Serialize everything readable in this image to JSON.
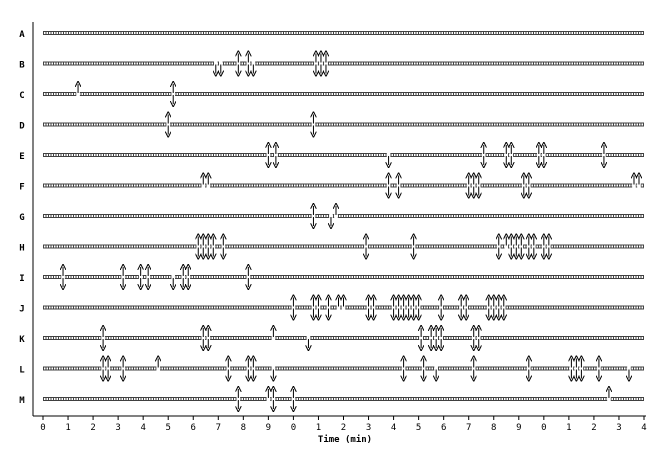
{
  "chart_data": {
    "type": "event-raster",
    "xlabel": "Time (min)",
    "x_tick_labels": [
      "0",
      "1",
      "2",
      "3",
      "4",
      "5",
      "6",
      "7",
      "8",
      "9",
      "0",
      "1",
      "2",
      "3",
      "4",
      "5",
      "6",
      "7",
      "8",
      "9",
      "0",
      "1",
      "2",
      "3",
      "4"
    ],
    "xlim": [
      0,
      24
    ],
    "grid": false,
    "legend": "none",
    "rows": [
      {
        "label": "A",
        "events": []
      },
      {
        "label": "B",
        "events": [
          {
            "t": 6.9,
            "dir": "down"
          },
          {
            "t": 7.1,
            "dir": "down"
          },
          {
            "t": 7.8,
            "dir": "both"
          },
          {
            "t": 8.2,
            "dir": "both"
          },
          {
            "t": 8.4,
            "dir": "down"
          },
          {
            "t": 10.9,
            "dir": "both"
          },
          {
            "t": 11.1,
            "dir": "both"
          },
          {
            "t": 11.3,
            "dir": "both"
          }
        ]
      },
      {
        "label": "C",
        "events": [
          {
            "t": 1.4,
            "dir": "up"
          },
          {
            "t": 5.2,
            "dir": "both"
          }
        ]
      },
      {
        "label": "D",
        "events": [
          {
            "t": 5.0,
            "dir": "both"
          },
          {
            "t": 10.8,
            "dir": "both"
          }
        ]
      },
      {
        "label": "E",
        "events": [
          {
            "t": 9.0,
            "dir": "both"
          },
          {
            "t": 9.3,
            "dir": "both"
          },
          {
            "t": 13.8,
            "dir": "down"
          },
          {
            "t": 17.6,
            "dir": "both"
          },
          {
            "t": 18.5,
            "dir": "both"
          },
          {
            "t": 18.7,
            "dir": "both"
          },
          {
            "t": 19.8,
            "dir": "both"
          },
          {
            "t": 20.0,
            "dir": "both"
          },
          {
            "t": 22.4,
            "dir": "both"
          }
        ]
      },
      {
        "label": "F",
        "events": [
          {
            "t": 6.4,
            "dir": "up"
          },
          {
            "t": 6.6,
            "dir": "up"
          },
          {
            "t": 13.8,
            "dir": "both"
          },
          {
            "t": 14.2,
            "dir": "both"
          },
          {
            "t": 17.0,
            "dir": "both"
          },
          {
            "t": 17.2,
            "dir": "both"
          },
          {
            "t": 17.4,
            "dir": "both"
          },
          {
            "t": 19.2,
            "dir": "both"
          },
          {
            "t": 19.4,
            "dir": "both"
          },
          {
            "t": 23.6,
            "dir": "up"
          },
          {
            "t": 23.8,
            "dir": "up"
          }
        ]
      },
      {
        "label": "G",
        "events": [
          {
            "t": 10.8,
            "dir": "both"
          },
          {
            "t": 11.5,
            "dir": "down"
          },
          {
            "t": 11.7,
            "dir": "up"
          }
        ]
      },
      {
        "label": "H",
        "events": [
          {
            "t": 6.2,
            "dir": "both"
          },
          {
            "t": 6.4,
            "dir": "both"
          },
          {
            "t": 6.6,
            "dir": "both"
          },
          {
            "t": 6.8,
            "dir": "both"
          },
          {
            "t": 7.2,
            "dir": "both"
          },
          {
            "t": 12.9,
            "dir": "both"
          },
          {
            "t": 14.8,
            "dir": "both"
          },
          {
            "t": 18.2,
            "dir": "both"
          },
          {
            "t": 18.5,
            "dir": "up"
          },
          {
            "t": 18.7,
            "dir": "both"
          },
          {
            "t": 18.9,
            "dir": "both"
          },
          {
            "t": 19.1,
            "dir": "both"
          },
          {
            "t": 19.4,
            "dir": "both"
          },
          {
            "t": 19.6,
            "dir": "both"
          },
          {
            "t": 20.0,
            "dir": "both"
          },
          {
            "t": 20.2,
            "dir": "both"
          }
        ]
      },
      {
        "label": "I",
        "events": [
          {
            "t": 0.8,
            "dir": "both"
          },
          {
            "t": 3.2,
            "dir": "both"
          },
          {
            "t": 3.9,
            "dir": "both"
          },
          {
            "t": 4.2,
            "dir": "both"
          },
          {
            "t": 5.2,
            "dir": "down"
          },
          {
            "t": 5.6,
            "dir": "both"
          },
          {
            "t": 5.8,
            "dir": "both"
          },
          {
            "t": 8.2,
            "dir": "both"
          }
        ]
      },
      {
        "label": "J",
        "events": [
          {
            "t": 10.0,
            "dir": "both"
          },
          {
            "t": 10.8,
            "dir": "both"
          },
          {
            "t": 11.0,
            "dir": "both"
          },
          {
            "t": 11.4,
            "dir": "both"
          },
          {
            "t": 11.8,
            "dir": "up"
          },
          {
            "t": 12.0,
            "dir": "up"
          },
          {
            "t": 13.0,
            "dir": "both"
          },
          {
            "t": 13.2,
            "dir": "both"
          },
          {
            "t": 14.0,
            "dir": "both"
          },
          {
            "t": 14.2,
            "dir": "both"
          },
          {
            "t": 14.4,
            "dir": "both"
          },
          {
            "t": 14.6,
            "dir": "both"
          },
          {
            "t": 14.8,
            "dir": "both"
          },
          {
            "t": 15.0,
            "dir": "both"
          },
          {
            "t": 15.9,
            "dir": "both"
          },
          {
            "t": 16.7,
            "dir": "both"
          },
          {
            "t": 16.9,
            "dir": "both"
          },
          {
            "t": 17.8,
            "dir": "both"
          },
          {
            "t": 18.0,
            "dir": "both"
          },
          {
            "t": 18.2,
            "dir": "both"
          },
          {
            "t": 18.4,
            "dir": "both"
          }
        ]
      },
      {
        "label": "K",
        "events": [
          {
            "t": 2.4,
            "dir": "both"
          },
          {
            "t": 6.4,
            "dir": "both"
          },
          {
            "t": 6.6,
            "dir": "both"
          },
          {
            "t": 9.2,
            "dir": "up"
          },
          {
            "t": 10.6,
            "dir": "down"
          },
          {
            "t": 15.1,
            "dir": "both"
          },
          {
            "t": 15.5,
            "dir": "both"
          },
          {
            "t": 15.7,
            "dir": "both"
          },
          {
            "t": 15.9,
            "dir": "both"
          },
          {
            "t": 17.2,
            "dir": "both"
          },
          {
            "t": 17.4,
            "dir": "both"
          }
        ]
      },
      {
        "label": "L",
        "events": [
          {
            "t": 2.4,
            "dir": "both"
          },
          {
            "t": 2.6,
            "dir": "both"
          },
          {
            "t": 3.2,
            "dir": "both"
          },
          {
            "t": 4.6,
            "dir": "up"
          },
          {
            "t": 7.4,
            "dir": "both"
          },
          {
            "t": 8.2,
            "dir": "both"
          },
          {
            "t": 8.4,
            "dir": "both"
          },
          {
            "t": 9.2,
            "dir": "down"
          },
          {
            "t": 14.4,
            "dir": "both"
          },
          {
            "t": 15.2,
            "dir": "both"
          },
          {
            "t": 15.7,
            "dir": "down"
          },
          {
            "t": 17.2,
            "dir": "both"
          },
          {
            "t": 19.4,
            "dir": "both"
          },
          {
            "t": 21.1,
            "dir": "both"
          },
          {
            "t": 21.3,
            "dir": "both"
          },
          {
            "t": 21.5,
            "dir": "both"
          },
          {
            "t": 22.2,
            "dir": "both"
          },
          {
            "t": 23.4,
            "dir": "down"
          }
        ]
      },
      {
        "label": "M",
        "events": [
          {
            "t": 7.8,
            "dir": "both"
          },
          {
            "t": 9.0,
            "dir": "up"
          },
          {
            "t": 9.2,
            "dir": "both"
          },
          {
            "t": 10.0,
            "dir": "both"
          },
          {
            "t": 22.6,
            "dir": "up"
          }
        ]
      }
    ]
  }
}
